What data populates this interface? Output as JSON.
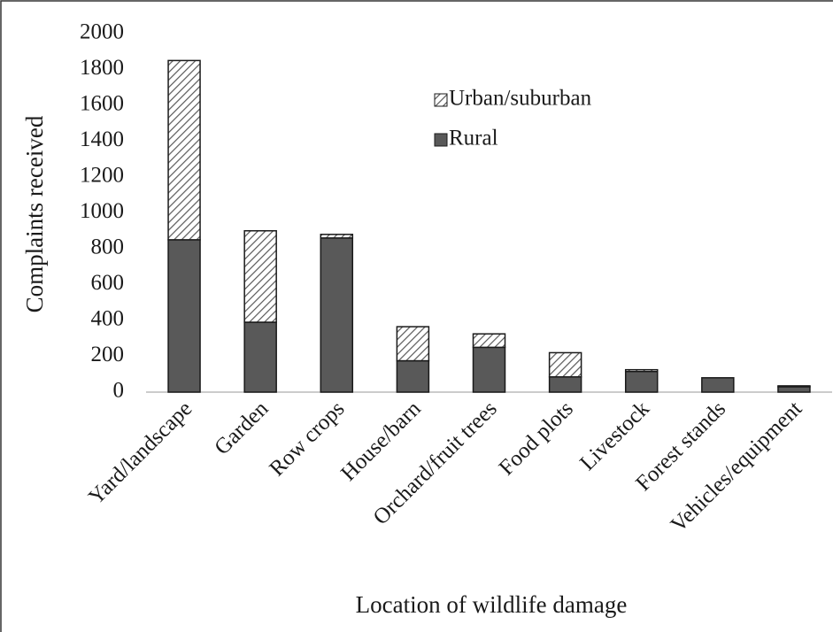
{
  "chart_data": {
    "type": "stacked_bar",
    "categories": [
      "Yard/landscape",
      "Garden",
      "Row crops",
      "House/barn",
      "Orchard/fruit trees",
      "Food plots",
      "Livestock",
      "Forest stands",
      "Vehicles/equipment"
    ],
    "series": [
      {
        "name": "Rural",
        "color": "#595959",
        "values": [
          850,
          390,
          860,
          175,
          250,
          85,
          115,
          80,
          30
        ]
      },
      {
        "name": "Urban/suburban",
        "color": "#595959",
        "hatch": true,
        "values": [
          1000,
          510,
          20,
          190,
          75,
          135,
          10,
          0,
          5
        ]
      }
    ],
    "ylim": [
      0,
      2000
    ],
    "yticks": [
      0,
      200,
      400,
      600,
      800,
      1000,
      1200,
      1400,
      1600,
      1800,
      2000
    ],
    "y_label": "Complaints received",
    "x_label": "Location of wildlife damage"
  }
}
